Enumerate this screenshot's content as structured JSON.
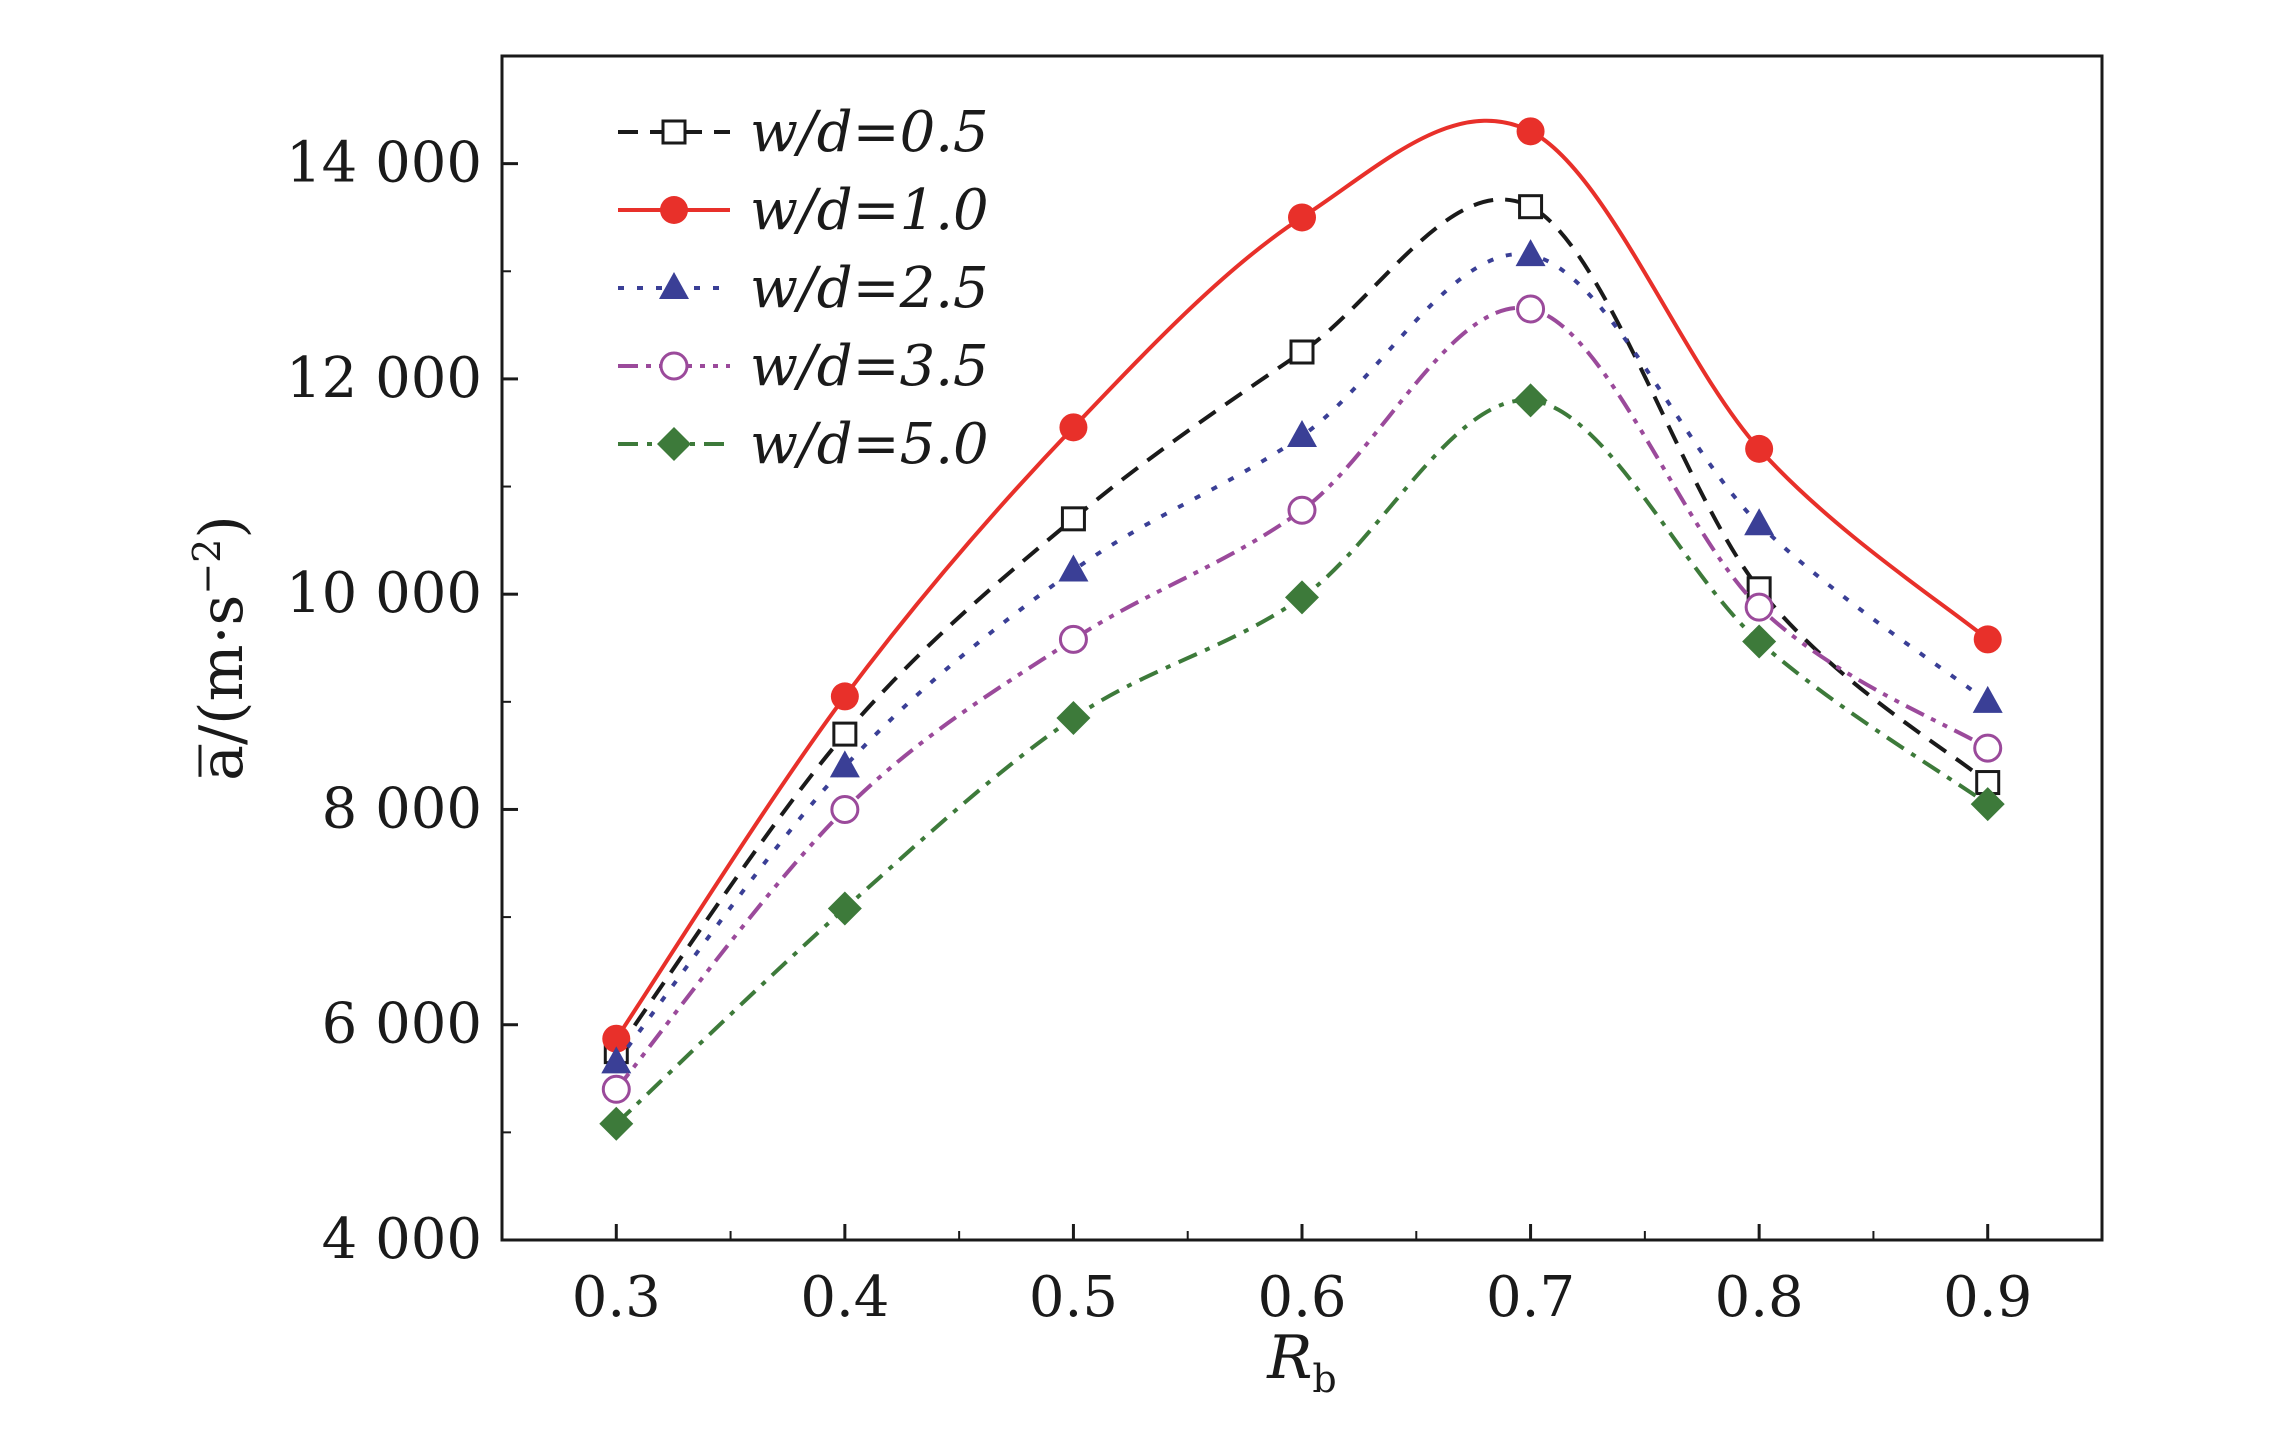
{
  "chart_data": {
    "type": "line",
    "title": "",
    "xlabel": "R",
    "xlabel_subscript": "b",
    "ylabel": "a/(m·s",
    "ylabel_superscript": "−2",
    "ylabel_suffix": ")",
    "xlim": [
      0.25,
      0.95
    ],
    "ylim": [
      4000,
      15000
    ],
    "x": [
      0.3,
      0.4,
      0.5,
      0.6,
      0.7,
      0.8,
      0.9
    ],
    "x_tick_labels": [
      "0.3",
      "0.4",
      "0.5",
      "0.6",
      "0.7",
      "0.8",
      "0.9"
    ],
    "y_ticks": [
      4000,
      6000,
      8000,
      10000,
      12000,
      14000
    ],
    "y_tick_labels": [
      "4 000",
      "6 000",
      "8 000",
      "10 000",
      "12 000",
      "14 000"
    ],
    "grid": false,
    "legend_position": "top-left",
    "series": [
      {
        "name": "w/d=0.5",
        "values": [
          5750,
          8700,
          10700,
          12250,
          13600,
          10050,
          8250
        ],
        "color": "#1a1a1a",
        "marker": "open-square",
        "line_style": "dashed"
      },
      {
        "name": "w/d=1.0",
        "values": [
          5870,
          9050,
          11550,
          13500,
          14300,
          11350,
          9580
        ],
        "color": "#e8302a",
        "marker": "filled-circle",
        "line_style": "solid"
      },
      {
        "name": "w/d=2.5",
        "values": [
          5650,
          8400,
          10220,
          11470,
          13150,
          10650,
          9000
        ],
        "color": "#3a3f96",
        "marker": "filled-triangle",
        "line_style": "dotted"
      },
      {
        "name": "w/d=3.5",
        "values": [
          5400,
          8000,
          9580,
          10780,
          12650,
          9880,
          8570
        ],
        "color": "#9b4a9b",
        "marker": "open-circle",
        "line_style": "dash-dot-dot"
      },
      {
        "name": "w/d=5.0",
        "values": [
          5080,
          7080,
          8850,
          9970,
          11800,
          9560,
          8050
        ],
        "color": "#3d7a3a",
        "marker": "filled-diamond",
        "line_style": "dash-dot"
      }
    ]
  }
}
